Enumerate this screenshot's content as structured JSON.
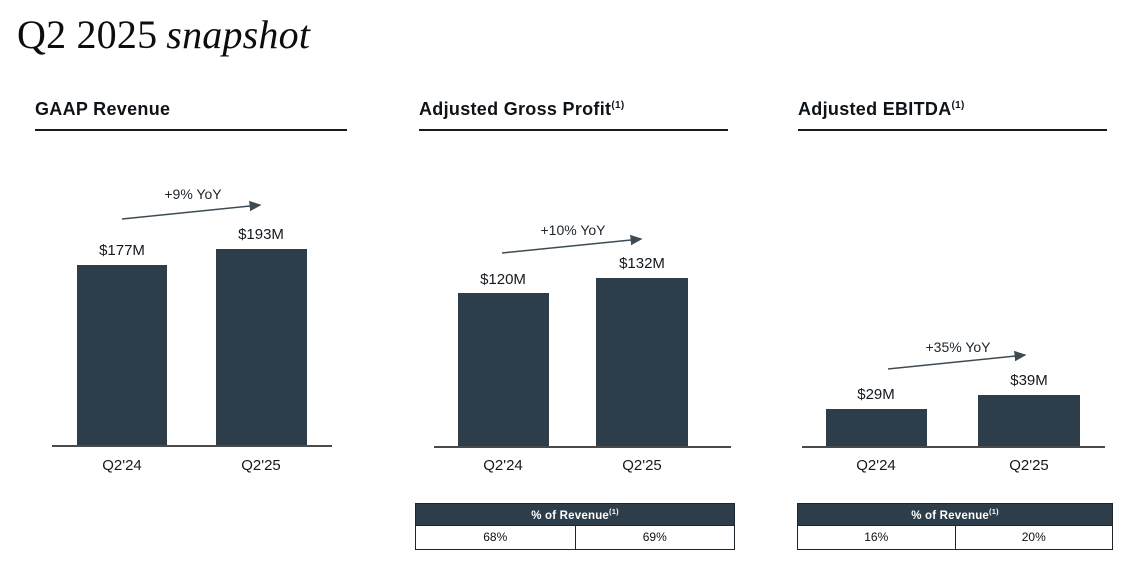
{
  "title": {
    "regular": "Q2 2025",
    "italic": "snapshot"
  },
  "colors": {
    "bar_fill": "#2d3e4a",
    "ink": "#14191e",
    "axis_line": "#4a4a4a",
    "arrow": "#3d4b55",
    "table_border": "#1d262e",
    "table_header_text": "#ffffff"
  },
  "sections": [
    {
      "header": "GAAP Revenue",
      "header_sup": ""
    },
    {
      "header": "Adjusted Gross Profit",
      "header_sup": "(1)",
      "table": {
        "header": "% of Revenue",
        "header_sup": "(1)"
      }
    },
    {
      "header": "Adjusted EBITDA",
      "header_sup": "(1)",
      "table": {
        "header": "% of Revenue",
        "header_sup": "(1)"
      }
    }
  ],
  "chart_data": [
    {
      "type": "bar",
      "title": "GAAP Revenue",
      "unit": "USD millions",
      "categories": [
        "Q2'24",
        "Q2'25"
      ],
      "values": [
        177,
        193
      ],
      "value_labels": [
        "$177M",
        "$193M"
      ],
      "yoy_annotation": "+9% YoY",
      "grid": false,
      "legend": false
    },
    {
      "type": "bar",
      "title": "Adjusted Gross Profit",
      "unit": "USD millions",
      "categories": [
        "Q2'24",
        "Q2'25"
      ],
      "values": [
        120,
        132
      ],
      "value_labels": [
        "$120M",
        "$132M"
      ],
      "yoy_annotation": "+10% YoY",
      "pct_of_revenue": [
        "68%",
        "69%"
      ],
      "grid": false,
      "legend": false
    },
    {
      "type": "bar",
      "title": "Adjusted EBITDA",
      "unit": "USD millions",
      "categories": [
        "Q2'24",
        "Q2'25"
      ],
      "values": [
        29,
        39
      ],
      "value_labels": [
        "$29M",
        "$39M"
      ],
      "yoy_annotation": "+35% YoY",
      "pct_of_revenue": [
        "16%",
        "20%"
      ],
      "grid": false,
      "legend": false
    }
  ]
}
